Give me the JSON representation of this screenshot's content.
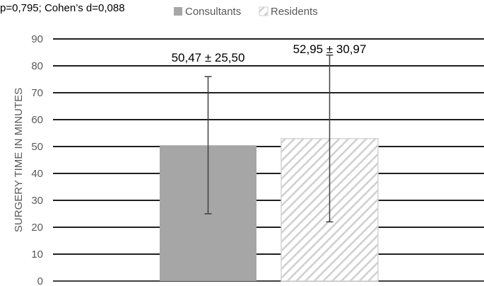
{
  "chart_data": {
    "type": "bar",
    "annotation": "p=0,795; Cohen’s d=0,088",
    "ylabel": "SURGERY TIME IN MINUTES",
    "xlabel": "",
    "ylim": [
      0,
      90
    ],
    "yticks": [
      "0",
      "10",
      "20",
      "30",
      "40",
      "50",
      "60",
      "70",
      "80",
      "90"
    ],
    "grid": true,
    "legend_position": "top",
    "series": [
      {
        "name": "Consultants",
        "value": 50.47,
        "sd": 25.5,
        "error_low": 25.0,
        "error_high": 76.0,
        "data_label": "50,47 ± 25,50",
        "color": "#a6a6a6",
        "pattern": "solid"
      },
      {
        "name": "Residents",
        "value": 52.95,
        "sd": 30.97,
        "error_low": 22.0,
        "error_high": 84.0,
        "data_label": "52,95 ± 30,97",
        "color": "#d9d9d9",
        "pattern": "diagonal-hatch"
      }
    ]
  }
}
